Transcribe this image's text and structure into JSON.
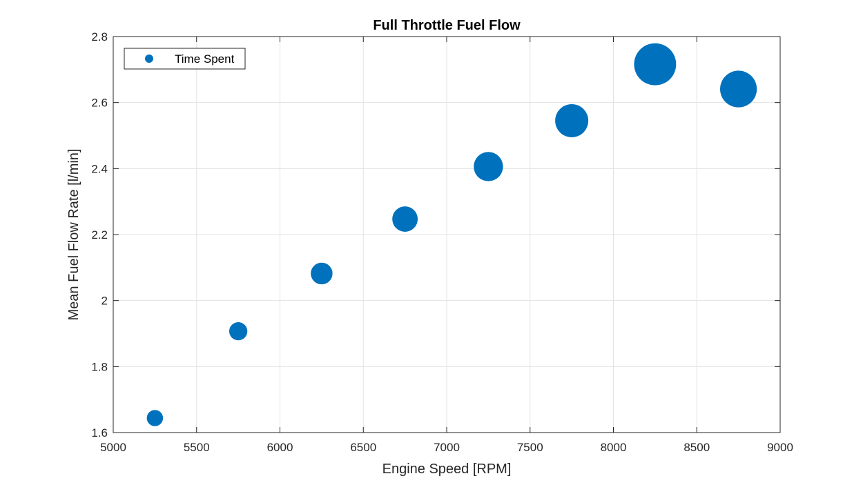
{
  "chart_data": {
    "type": "scatter",
    "title": "Full Throttle Fuel Flow",
    "xlabel": "Engine Speed [RPM]",
    "ylabel": "Mean Fuel Flow Rate [l/min]",
    "xlim": [
      5000,
      9000
    ],
    "ylim": [
      1.6,
      2.8
    ],
    "xticks": [
      5000,
      5500,
      6000,
      6500,
      7000,
      7500,
      8000,
      8500,
      9000
    ],
    "xtick_labels": [
      "5000",
      "5500",
      "6000",
      "6500",
      "7000",
      "7500",
      "8000",
      "8500",
      "9000"
    ],
    "yticks": [
      1.6,
      1.8,
      2.0,
      2.2,
      2.4,
      2.6,
      2.8
    ],
    "ytick_labels": [
      "1.6",
      "1.8",
      "2",
      "2.2",
      "2.4",
      "2.6",
      "2.8"
    ],
    "grid": true,
    "legend_placement": "top-left",
    "series": [
      {
        "name": "Time Spent",
        "color": "#0072BD",
        "x": [
          5250,
          5750,
          6250,
          6750,
          7250,
          7750,
          8250,
          8750
        ],
        "y": [
          1.644,
          1.907,
          2.082,
          2.247,
          2.406,
          2.545,
          2.716,
          2.641
        ],
        "relative_size": [
          0.24,
          0.3,
          0.43,
          0.59,
          0.78,
          1.0,
          1.61,
          1.23
        ]
      }
    ]
  }
}
